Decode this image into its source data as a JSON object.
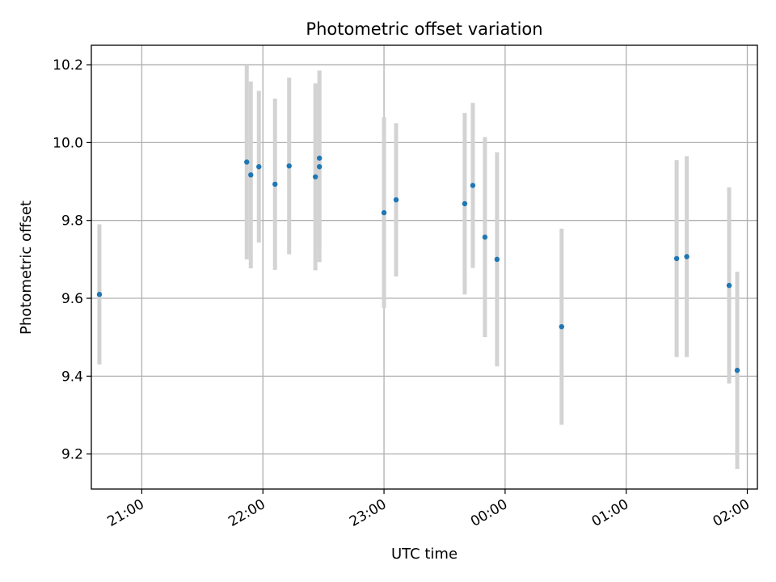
{
  "chart_data": {
    "type": "scatter",
    "title": "Photometric offset variation",
    "xlabel": "UTC time",
    "ylabel": "Photometric offset",
    "x_tick_labels": [
      "21:00",
      "22:00",
      "23:00",
      "00:00",
      "01:00",
      "02:00"
    ],
    "y_tick_labels": [
      "9.2",
      "9.4",
      "9.6",
      "9.8",
      "10.0",
      "10.2"
    ],
    "y_ticks": [
      9.2,
      9.4,
      9.6,
      9.8,
      10.0,
      10.2
    ],
    "x_range_utc": [
      "20:35",
      "02:05"
    ],
    "ylim": [
      9.11,
      10.25
    ],
    "grid": true,
    "colors": {
      "marker": "#1f77b4",
      "errorbar": "#d3d3d3",
      "grid": "#b0b0b0"
    },
    "points": [
      {
        "time": "20:39",
        "y": 9.61,
        "err": 0.18
      },
      {
        "time": "21:52",
        "y": 9.95,
        "err": 0.25
      },
      {
        "time": "21:54",
        "y": 9.917,
        "err": 0.24
      },
      {
        "time": "21:58",
        "y": 9.938,
        "err": 0.195
      },
      {
        "time": "22:06",
        "y": 9.893,
        "err": 0.22
      },
      {
        "time": "22:13",
        "y": 9.94,
        "err": 0.227
      },
      {
        "time": "22:26",
        "y": 9.912,
        "err": 0.24
      },
      {
        "time": "22:28",
        "y": 9.938,
        "err": 0.245
      },
      {
        "time": "22:28",
        "y": 9.96,
        "err": 0.225
      },
      {
        "time": "23:00",
        "y": 9.82,
        "err": 0.245
      },
      {
        "time": "23:06",
        "y": 9.853,
        "err": 0.197
      },
      {
        "time": "23:40",
        "y": 9.843,
        "err": 0.233
      },
      {
        "time": "23:44",
        "y": 9.89,
        "err": 0.212
      },
      {
        "time": "23:50",
        "y": 9.757,
        "err": 0.257
      },
      {
        "time": "23:56",
        "y": 9.7,
        "err": 0.275
      },
      {
        "time": "00:28",
        "y": 9.527,
        "err": 0.252
      },
      {
        "time": "01:25",
        "y": 9.702,
        "err": 0.253
      },
      {
        "time": "01:30",
        "y": 9.707,
        "err": 0.258
      },
      {
        "time": "01:51",
        "y": 9.633,
        "err": 0.252
      },
      {
        "time": "01:55",
        "y": 9.415,
        "err": 0.253
      }
    ]
  }
}
